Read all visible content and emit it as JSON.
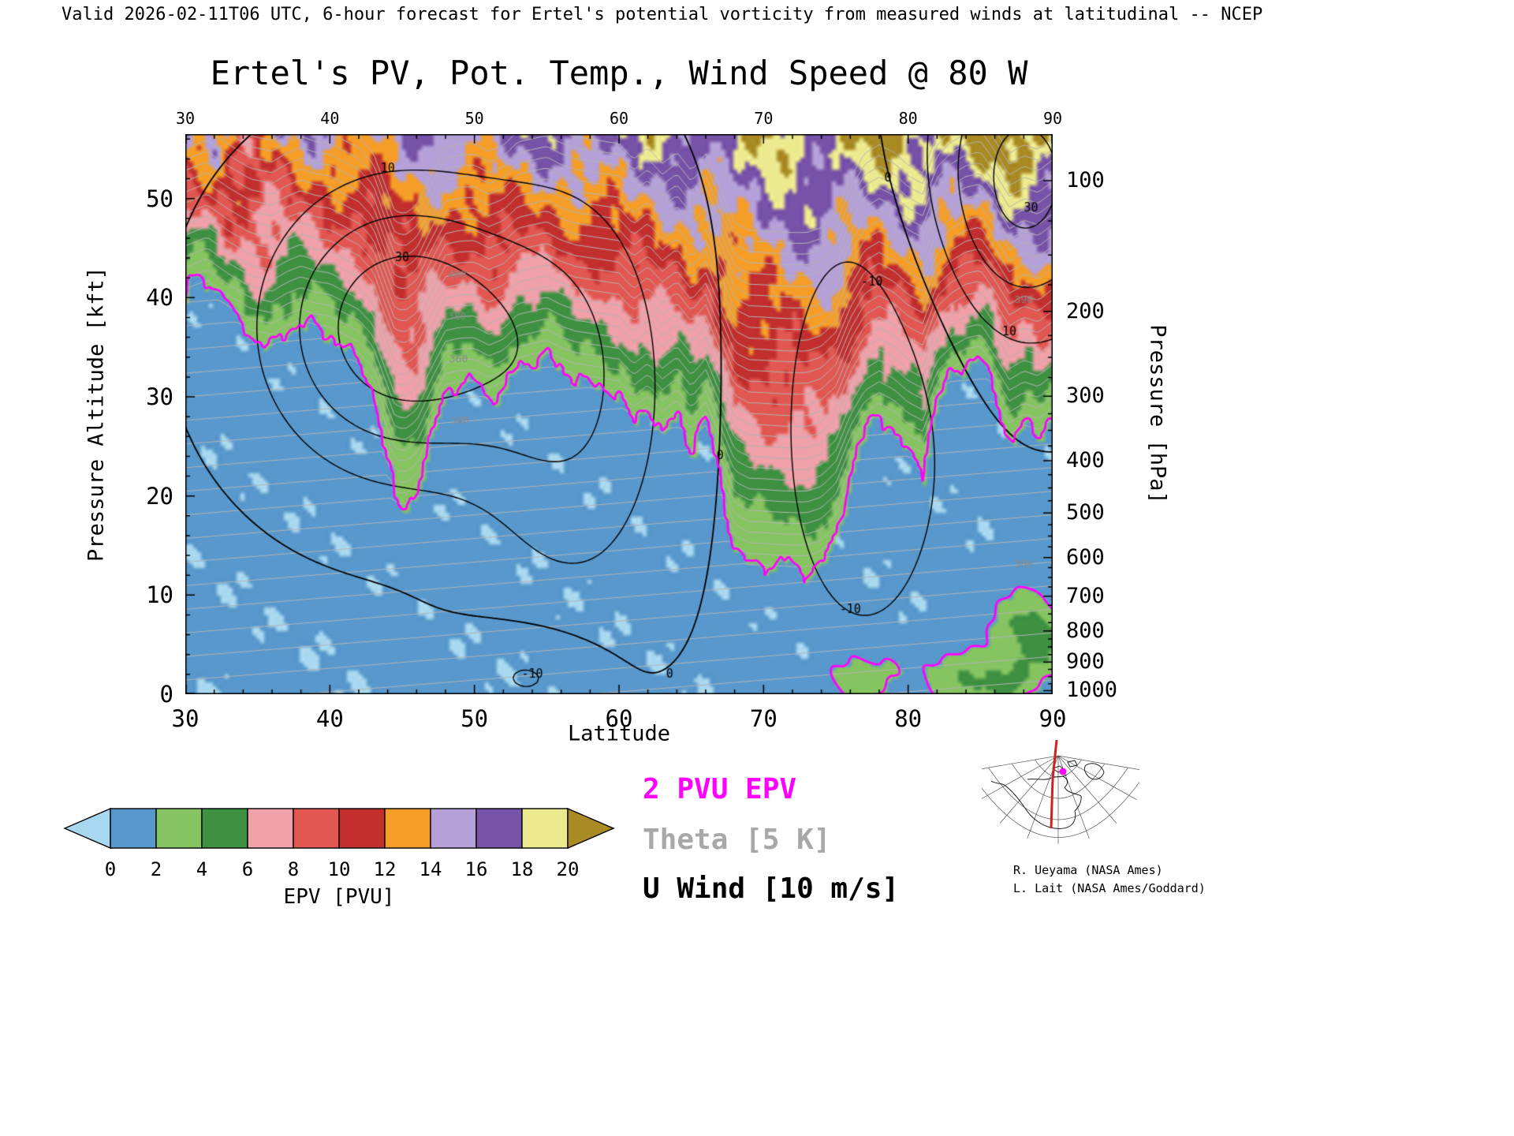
{
  "header": {
    "valid_line": "Valid 2026-02-11T06 UTC, 6-hour forecast for Ertel's potential vorticity from measured winds at latitudinal -- NCEP"
  },
  "title": {
    "text": "Ertel's PV, Pot. Temp., Wind Speed @ 80 W"
  },
  "axes": {
    "x": {
      "label": "Latitude",
      "ticks": [
        30,
        40,
        50,
        60,
        70,
        80,
        90
      ],
      "range": [
        30,
        90
      ]
    },
    "y_left": {
      "label": "Pressure Altitude [kft]",
      "ticks": [
        0,
        10,
        20,
        30,
        40,
        50
      ],
      "range_kft": [
        0,
        56.5
      ]
    },
    "y_right": {
      "label": "Pressure [hPa]",
      "ticks": [
        100,
        200,
        300,
        400,
        500,
        600,
        700,
        800,
        900,
        1000
      ]
    }
  },
  "colorbar": {
    "label": "EPV [PVU]",
    "tick_labels": [
      "0",
      "2",
      "4",
      "6",
      "8",
      "10",
      "12",
      "14",
      "16",
      "18",
      "20"
    ]
  },
  "legend": {
    "items": [
      {
        "label": "2 PVU EPV",
        "color": "#ff00ff"
      },
      {
        "label": "Theta [5 K]",
        "color": "#a8a8a8"
      },
      {
        "label": "U Wind [10 m/s]",
        "color": "#000000"
      }
    ]
  },
  "inset": {
    "meridian_color": "#cc2222",
    "marker_color": "#ff00ff"
  },
  "credits": {
    "line1": "R. Ueyama (NASA Ames)",
    "line2": "L. Lait (NASA Ames/Goddard)"
  },
  "chart_data": {
    "type": "heatmap",
    "title": "Ertel's PV, Pot. Temp., Wind Speed @ 80 W",
    "xlabel": "Latitude",
    "ylabel": "Pressure Altitude [kft]",
    "ylabel_right": "Pressure [hPa]",
    "x_range": [
      30,
      90
    ],
    "y_range_kft": [
      0,
      56.5
    ],
    "fill_field": "Ertel potential vorticity [PVU]",
    "fill_levels": [
      0,
      2,
      4,
      6,
      8,
      10,
      12,
      14,
      16,
      18,
      20
    ],
    "fill_colors": [
      "#a8d8f0",
      "#5898cc",
      "#86c461",
      "#3f9142",
      "#f0a0a8",
      "#e25752",
      "#c32f2e",
      "#f59d27",
      "#b5a0d8",
      "#7753a8",
      "#ece98f",
      "#a98a23"
    ],
    "tropopause_2pvu_kft": {
      "lat": [
        30,
        31.5,
        33,
        34.5,
        36,
        37,
        38,
        39,
        40,
        41,
        42,
        43,
        43.8,
        44.5,
        45.2,
        46,
        47,
        48,
        49,
        50,
        51,
        52,
        53,
        54,
        55,
        56,
        57,
        58,
        59,
        60,
        61,
        62,
        63,
        64,
        65,
        66,
        67,
        68,
        69,
        70,
        71,
        72,
        73,
        74,
        75,
        76,
        77,
        78,
        79,
        80,
        81,
        82,
        83,
        84,
        85,
        86,
        87,
        88,
        89,
        90
      ],
      "alt": [
        40,
        41.5,
        38.5,
        36,
        35,
        36.5,
        37.5,
        36.5,
        36,
        34.5,
        33,
        30,
        24,
        19,
        18.5,
        20,
        25.5,
        30.5,
        31,
        31,
        29.5,
        30.5,
        33,
        33.5,
        34,
        32.5,
        31.5,
        31,
        30.5,
        30,
        27,
        29,
        26,
        28,
        24.5,
        27.5,
        21,
        14.5,
        13,
        12.8,
        12.5,
        12.3,
        12.2,
        13,
        15.5,
        22,
        26.5,
        28,
        26.5,
        24,
        22.5,
        29.5,
        32,
        33.5,
        34,
        30,
        25.5,
        27,
        26,
        28
      ]
    },
    "epv_top_pvu": {
      "lat": [
        30,
        90
      ],
      "pvu": [
        13,
        22
      ]
    },
    "surface_pv_features": [
      {
        "lat": 76.5,
        "alt": 1.5,
        "amp": 3.2,
        "lat_w": 2.2,
        "alt_w": 2.5
      },
      {
        "lat": 84.0,
        "alt": 2.0,
        "amp": 3.0,
        "lat_w": 3.0,
        "alt_w": 3.0
      },
      {
        "lat": 88.5,
        "alt": 6.0,
        "amp": 4.2,
        "lat_w": 2.4,
        "alt_w": 4.5
      },
      {
        "lat": 86.5,
        "alt": 1.0,
        "amp": 2.6,
        "lat_w": 2.0,
        "alt_w": 2.0
      }
    ],
    "u_wind_contour_interval_ms": 10,
    "u_levels": [
      -30,
      -20,
      -10,
      0,
      10,
      20,
      30,
      40
    ],
    "u_wind_offset": -1.5,
    "u_wind_jets": [
      {
        "a": 40,
        "lat": 45,
        "lat_w": 9,
        "z": 37,
        "z_w": 14
      },
      {
        "a": 20,
        "lat": 57,
        "lat_w": 7,
        "z": 30,
        "z_w": 22
      },
      {
        "a": -18,
        "lat": 77,
        "lat_w": 6,
        "z": 27,
        "z_w": 22
      },
      {
        "a": 35,
        "lat": 88,
        "lat_w": 7,
        "z": 52,
        "z_w": 16
      },
      {
        "a": -12,
        "lat": 54,
        "lat_w": 5,
        "z": 2,
        "z_w": 5
      }
    ],
    "theta": {
      "base_K": 287,
      "lapse_K_per_kft": 2.1,
      "lat_gradient_K_per_deg": -0.25,
      "strat_extra_K_per_kft": 2.5,
      "interval_K": 5,
      "min_K": 270,
      "max_K": 460
    },
    "contour_labels": [
      {
        "text": "0",
        "lat": 63.5,
        "z": 2,
        "color": "black"
      },
      {
        "text": "0",
        "lat": 67,
        "z": 24,
        "color": "black"
      },
      {
        "text": "0",
        "lat": 78.6,
        "z": 52,
        "color": "black"
      },
      {
        "text": "-10",
        "lat": 77.5,
        "z": 41.5,
        "color": "black"
      },
      {
        "text": "-10",
        "lat": 76,
        "z": 8.5,
        "color": "black"
      },
      {
        "text": "-10",
        "lat": 54,
        "z": 2,
        "color": "black"
      },
      {
        "text": "10",
        "lat": 87,
        "z": 36.5,
        "color": "black"
      },
      {
        "text": "30",
        "lat": 88.5,
        "z": 49,
        "color": "black"
      },
      {
        "text": "30",
        "lat": 45,
        "z": 44,
        "color": "black"
      },
      {
        "text": "10",
        "lat": 44,
        "z": 53,
        "color": "black"
      },
      {
        "text": "400",
        "lat": 48.8,
        "z": 42.3,
        "color": "gray"
      },
      {
        "text": "380",
        "lat": 48.8,
        "z": 38.1,
        "color": "gray"
      },
      {
        "text": "360",
        "lat": 48.9,
        "z": 33.8,
        "color": "gray"
      },
      {
        "text": "340",
        "lat": 49,
        "z": 27.6,
        "color": "gray"
      },
      {
        "text": "390",
        "lat": 88,
        "z": 39.7,
        "color": "gray"
      },
      {
        "text": "300",
        "lat": 88,
        "z": 13.1,
        "color": "gray"
      }
    ]
  }
}
